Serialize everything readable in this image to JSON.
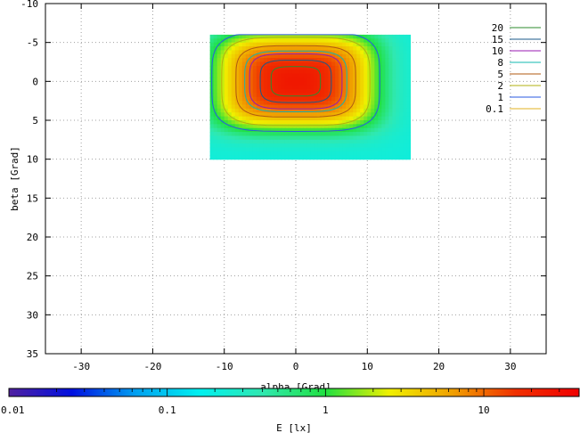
{
  "chart_data": {
    "type": "heatmap",
    "title": "",
    "xlabel": "alpha [Grad]",
    "ylabel": "beta [Grad]",
    "xlim": [
      -35,
      35
    ],
    "ylim": [
      -10,
      35
    ],
    "y_inverted": true,
    "grid": true,
    "x_ticks": [
      -30,
      -20,
      -10,
      0,
      10,
      20,
      30
    ],
    "y_ticks": [
      -10,
      -5,
      0,
      5,
      10,
      15,
      20,
      25,
      30,
      35
    ],
    "data_extent": {
      "alpha": [
        -12,
        16
      ],
      "beta": [
        -6,
        10
      ]
    },
    "contour_levels": [
      {
        "label": "20",
        "value": 20,
        "color": "#2e8b2e"
      },
      {
        "label": "15",
        "value": 15,
        "color": "#1a5a8a"
      },
      {
        "label": "10",
        "value": 10,
        "color": "#9a1ab0"
      },
      {
        "label": "8",
        "value": 8,
        "color": "#10b8b0"
      },
      {
        "label": "5",
        "value": 5,
        "color": "#b05a10"
      },
      {
        "label": "2",
        "value": 2,
        "color": "#b0b010"
      },
      {
        "label": "1",
        "value": 1,
        "color": "#2a5ae0"
      },
      {
        "label": "0.1",
        "value": 0.1,
        "color": "#e0b020"
      }
    ],
    "legend_position": "top-right",
    "colorbar": {
      "label": "E [lx]",
      "scale": "log",
      "range": [
        0.01,
        40
      ],
      "tick_labels": [
        {
          "label": "0.01",
          "value": 0.01
        },
        {
          "label": "0.1",
          "value": 0.1
        },
        {
          "label": "1",
          "value": 1
        },
        {
          "label": "10",
          "value": 10
        }
      ],
      "colors": [
        "#5020a0",
        "#0010e0",
        "#00a0f0",
        "#00f0f0",
        "#30e8b0",
        "#20e040",
        "#f0f000",
        "#f0a000",
        "#f03000",
        "#f00000"
      ]
    },
    "field": {
      "center_alpha": 0,
      "center_beta": 0,
      "peak_value": 25,
      "background_value": 0.3
    }
  }
}
